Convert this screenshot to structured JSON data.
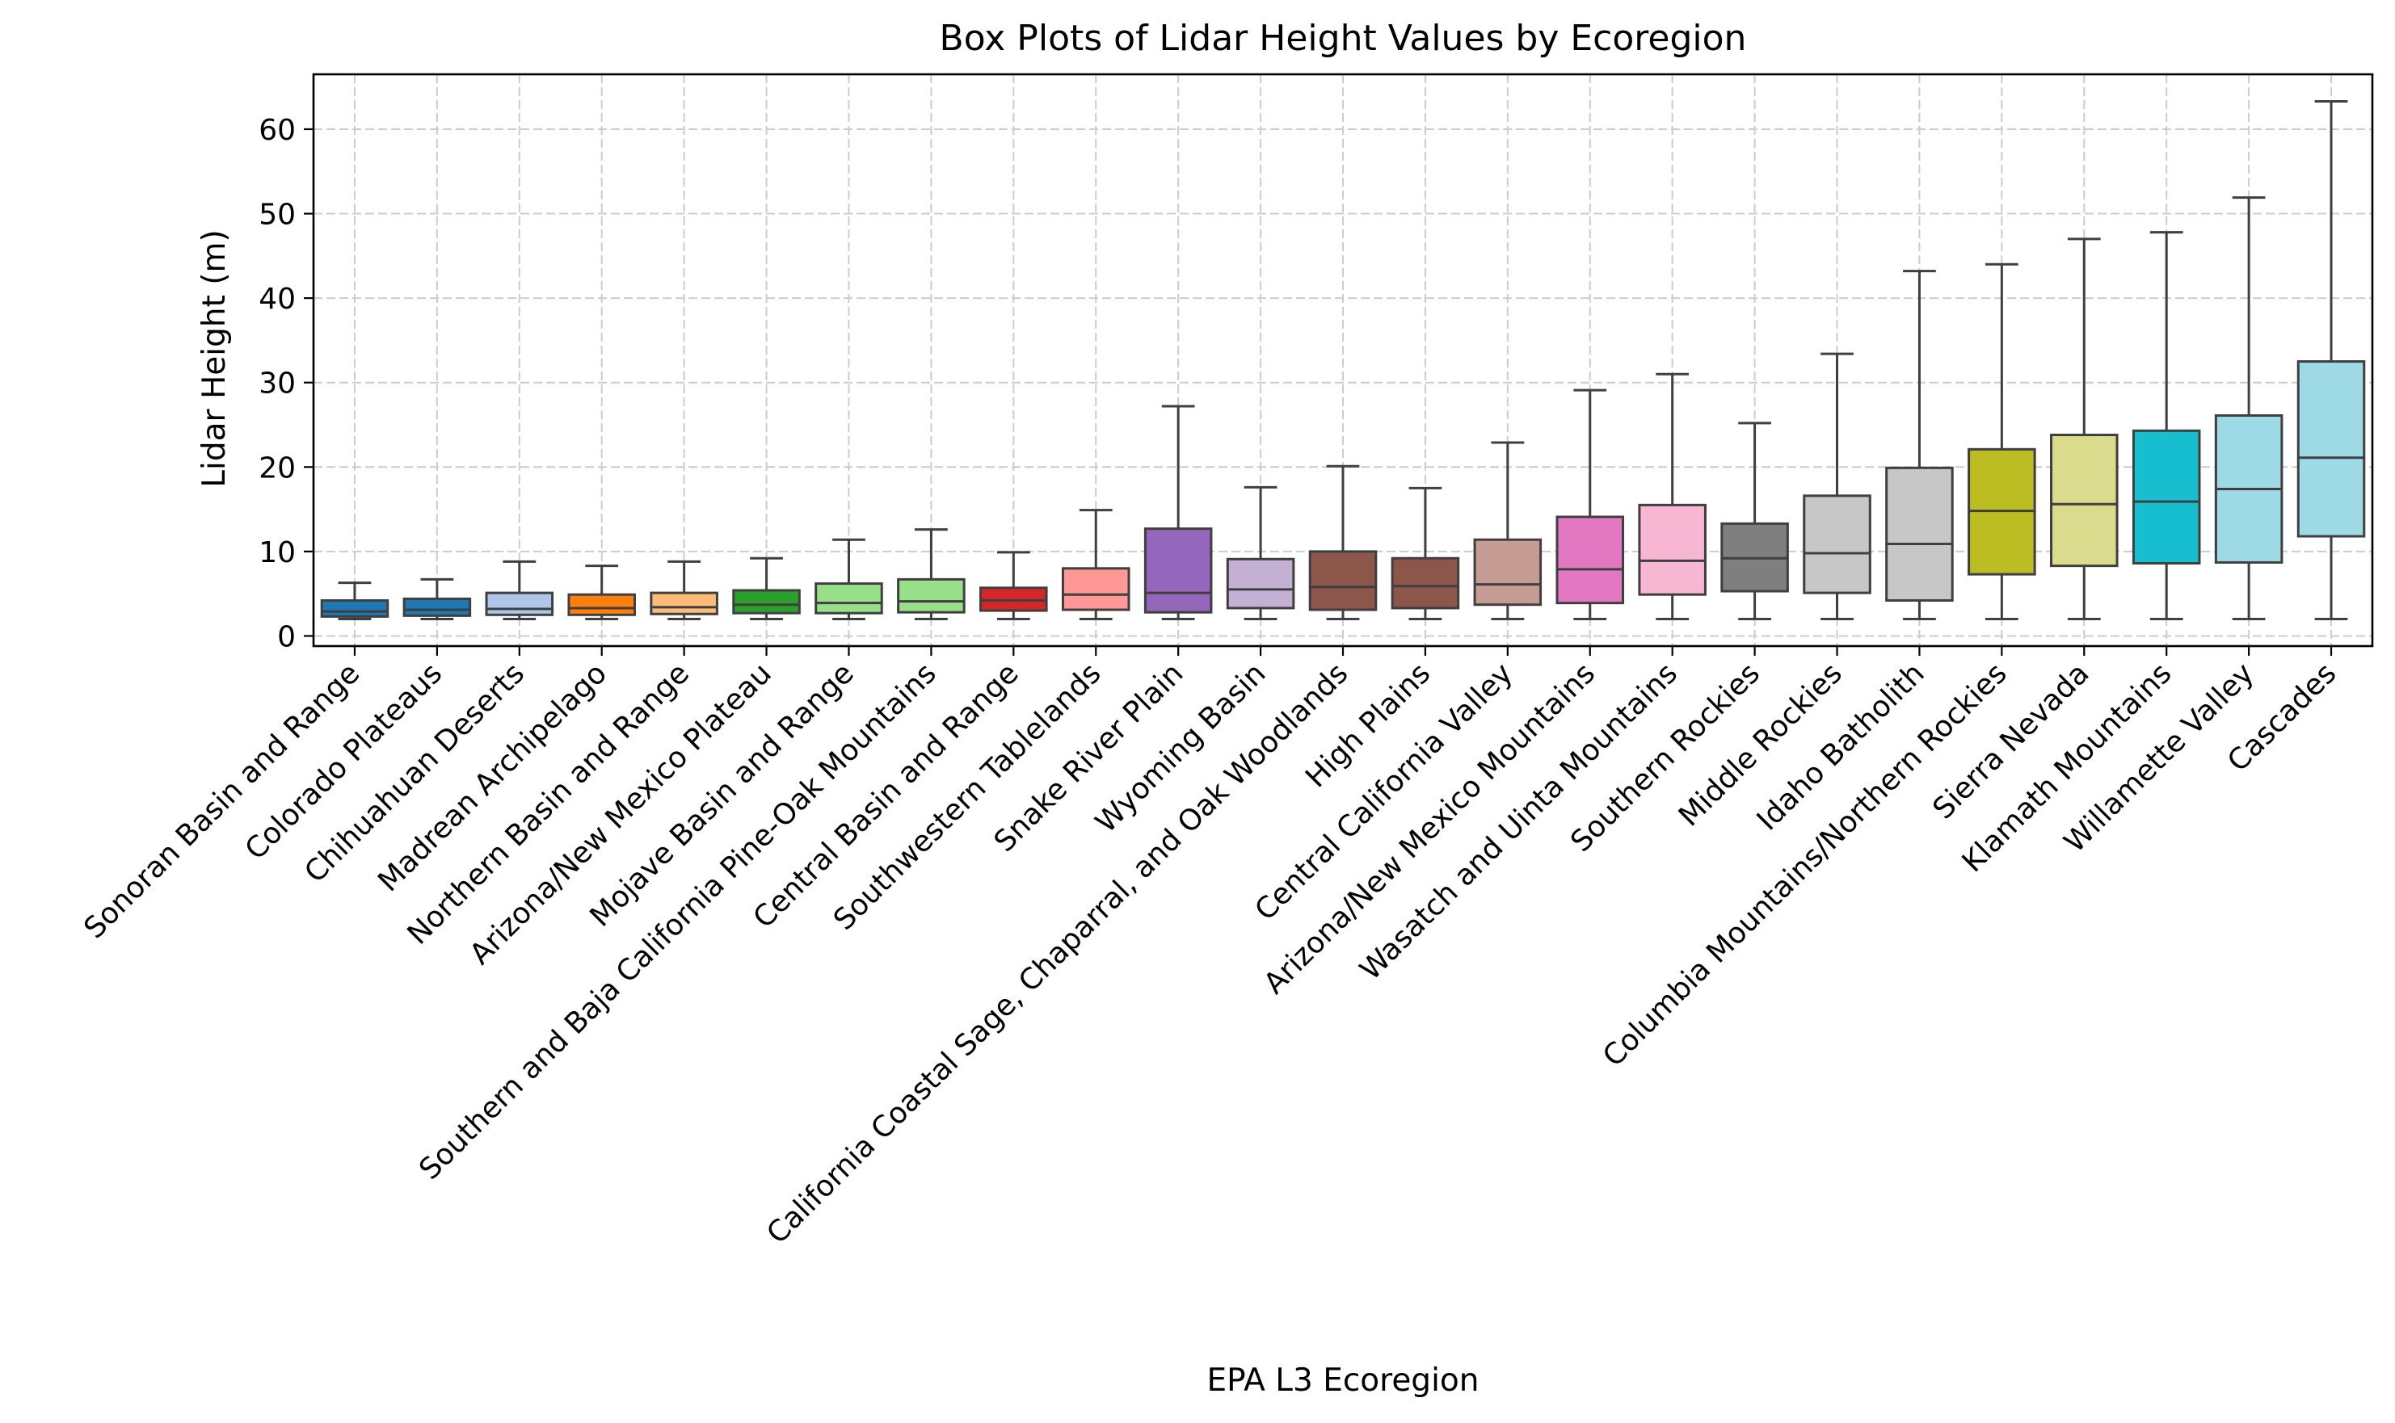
{
  "chart_data": {
    "type": "box",
    "title": "Box Plots of Lidar Height Values by Ecoregion",
    "xlabel": "EPA L3 Ecoregion",
    "ylabel": "Lidar Height (m)",
    "ylim": [
      -1.2,
      66.5
    ],
    "yticks": [
      0,
      10,
      20,
      30,
      40,
      50,
      60
    ],
    "grid": true,
    "boxes": [
      {
        "label": "Sonoran Basin and Range",
        "color": "#1f77b4",
        "whisker_low": 2,
        "q1": 2.3,
        "median": 2.9,
        "q3": 4.2,
        "whisker_high": 6.3
      },
      {
        "label": "Colorado Plateaus",
        "color": "#1f77b4",
        "whisker_low": 2,
        "q1": 2.4,
        "median": 3.1,
        "q3": 4.4,
        "whisker_high": 6.7
      },
      {
        "label": "Chihuahuan Deserts",
        "color": "#aec7e8",
        "whisker_low": 2,
        "q1": 2.5,
        "median": 3.2,
        "q3": 5.1,
        "whisker_high": 8.8
      },
      {
        "label": "Madrean Archipelago",
        "color": "#ff7f0e",
        "whisker_low": 2,
        "q1": 2.5,
        "median": 3.3,
        "q3": 4.9,
        "whisker_high": 8.3
      },
      {
        "label": "Northern Basin and Range",
        "color": "#ffbb78",
        "whisker_low": 2,
        "q1": 2.6,
        "median": 3.4,
        "q3": 5.1,
        "whisker_high": 8.8
      },
      {
        "label": "Arizona/New Mexico Plateau",
        "color": "#2ca02c",
        "whisker_low": 2,
        "q1": 2.7,
        "median": 3.7,
        "q3": 5.4,
        "whisker_high": 9.2
      },
      {
        "label": "Mojave Basin and Range",
        "color": "#98df8a",
        "whisker_low": 2,
        "q1": 2.7,
        "median": 3.9,
        "q3": 6.2,
        "whisker_high": 11.4
      },
      {
        "label": "Southern and Baja California Pine-Oak Mountains",
        "color": "#98df8a",
        "whisker_low": 2,
        "q1": 2.8,
        "median": 4.1,
        "q3": 6.7,
        "whisker_high": 12.6
      },
      {
        "label": "Central Basin and Range",
        "color": "#d62728",
        "whisker_low": 2,
        "q1": 3.0,
        "median": 4.2,
        "q3": 5.7,
        "whisker_high": 9.9
      },
      {
        "label": "Southwestern Tablelands",
        "color": "#ff9896",
        "whisker_low": 2,
        "q1": 3.1,
        "median": 4.9,
        "q3": 8.0,
        "whisker_high": 14.9
      },
      {
        "label": "Snake River Plain",
        "color": "#9467bd",
        "whisker_low": 2,
        "q1": 2.8,
        "median": 5.1,
        "q3": 12.7,
        "whisker_high": 27.2
      },
      {
        "label": "Wyoming Basin",
        "color": "#c5b0d5",
        "whisker_low": 2,
        "q1": 3.3,
        "median": 5.5,
        "q3": 9.1,
        "whisker_high": 17.6
      },
      {
        "label": "California Coastal Sage, Chaparral, and Oak Woodlands",
        "color": "#8c564b",
        "whisker_low": 2,
        "q1": 3.1,
        "median": 5.8,
        "q3": 10.0,
        "whisker_high": 20.1
      },
      {
        "label": "High Plains",
        "color": "#8c564b",
        "whisker_low": 2,
        "q1": 3.3,
        "median": 5.9,
        "q3": 9.2,
        "whisker_high": 17.5
      },
      {
        "label": "Central California Valley",
        "color": "#c49c94",
        "whisker_low": 2,
        "q1": 3.7,
        "median": 6.1,
        "q3": 11.4,
        "whisker_high": 22.9
      },
      {
        "label": "Arizona/New Mexico Mountains",
        "color": "#e377c2",
        "whisker_low": 2,
        "q1": 3.9,
        "median": 7.9,
        "q3": 14.1,
        "whisker_high": 29.1
      },
      {
        "label": "Wasatch and Uinta Mountains",
        "color": "#f7b6d2",
        "whisker_low": 2,
        "q1": 4.9,
        "median": 8.9,
        "q3": 15.5,
        "whisker_high": 31.0
      },
      {
        "label": "Southern Rockies",
        "color": "#7f7f7f",
        "whisker_low": 2,
        "q1": 5.3,
        "median": 9.2,
        "q3": 13.3,
        "whisker_high": 25.2
      },
      {
        "label": "Middle Rockies",
        "color": "#c7c7c7",
        "whisker_low": 2,
        "q1": 5.1,
        "median": 9.8,
        "q3": 16.6,
        "whisker_high": 33.4
      },
      {
        "label": "Idaho Batholith",
        "color": "#c7c7c7",
        "whisker_low": 2,
        "q1": 4.2,
        "median": 10.9,
        "q3": 19.9,
        "whisker_high": 43.2
      },
      {
        "label": "Columbia Mountains/Northern Rockies",
        "color": "#bcbd22",
        "whisker_low": 2,
        "q1": 7.3,
        "median": 14.8,
        "q3": 22.1,
        "whisker_high": 44.0
      },
      {
        "label": "Sierra Nevada",
        "color": "#dbdb8d",
        "whisker_low": 2,
        "q1": 8.3,
        "median": 15.6,
        "q3": 23.8,
        "whisker_high": 47.0
      },
      {
        "label": "Klamath Mountains",
        "color": "#17becf",
        "whisker_low": 2,
        "q1": 8.6,
        "median": 15.9,
        "q3": 24.3,
        "whisker_high": 47.8
      },
      {
        "label": "Willamette Valley",
        "color": "#9edae5",
        "whisker_low": 2,
        "q1": 8.7,
        "median": 17.4,
        "q3": 26.1,
        "whisker_high": 51.9
      },
      {
        "label": "Cascades",
        "color": "#9edae5",
        "whisker_low": 2,
        "q1": 11.8,
        "median": 21.1,
        "q3": 32.5,
        "whisker_high": 63.3
      }
    ]
  }
}
